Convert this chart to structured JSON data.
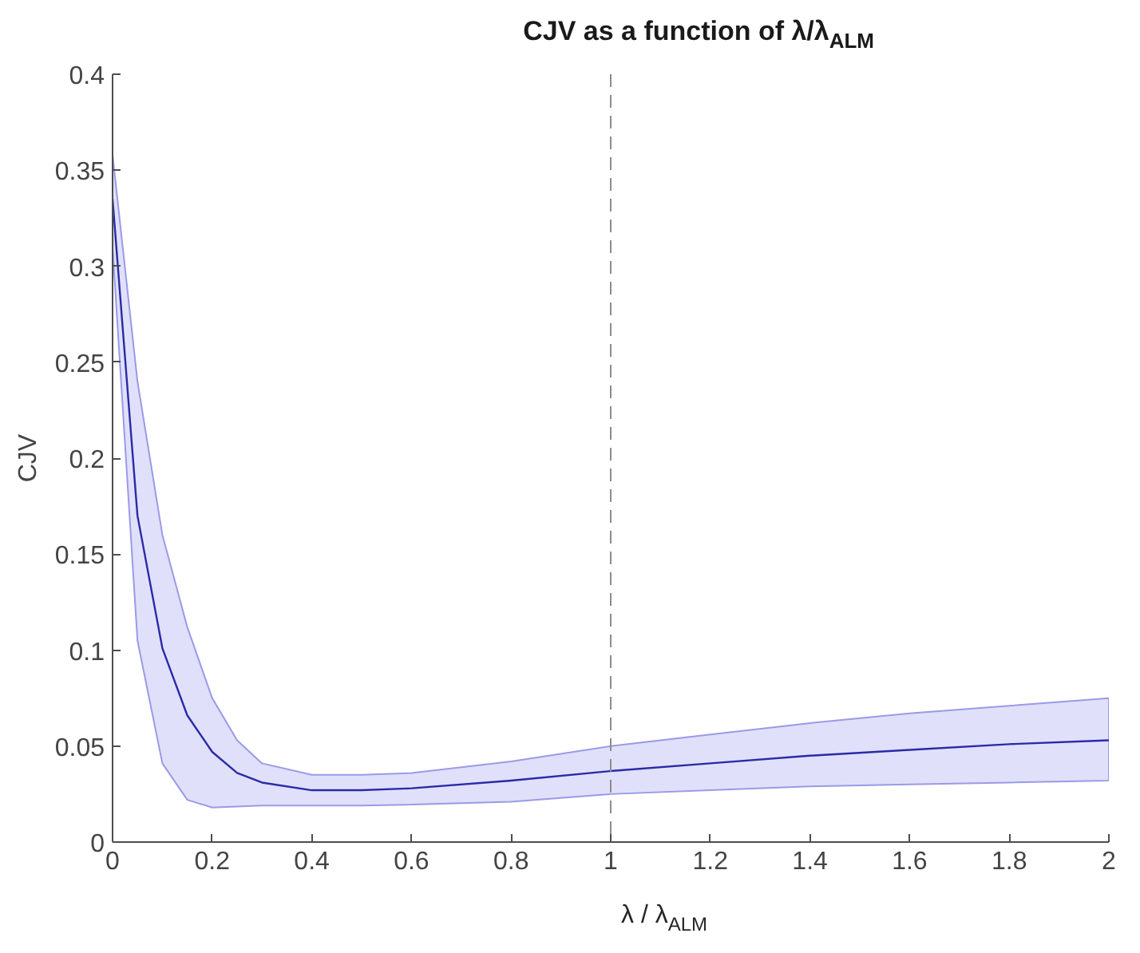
{
  "chart_data": {
    "type": "line",
    "title": "CJV as a function of λ/λ$_{ALM}$",
    "xlabel": "λ / λ$_{ALM}$",
    "ylabel": "CJV",
    "x": [
      0,
      0.05,
      0.1,
      0.15,
      0.2,
      0.25,
      0.3,
      0.4,
      0.5,
      0.6,
      0.8,
      1.0,
      1.2,
      1.4,
      1.6,
      1.8,
      2.0
    ],
    "series": [
      {
        "color": "#2a2aa8",
        "values": [
          0.335,
          0.17,
          0.101,
          0.066,
          0.047,
          0.036,
          0.031,
          0.027,
          0.027,
          0.028,
          0.032,
          0.037,
          0.041,
          0.045,
          0.048,
          0.051,
          0.053
        ],
        "lower": [
          0.31,
          0.105,
          0.041,
          0.022,
          0.018,
          0.0185,
          0.019,
          0.019,
          0.019,
          0.0195,
          0.021,
          0.025,
          0.027,
          0.029,
          0.03,
          0.031,
          0.032
        ],
        "upper": [
          0.358,
          0.24,
          0.16,
          0.112,
          0.075,
          0.053,
          0.041,
          0.035,
          0.035,
          0.036,
          0.042,
          0.05,
          0.056,
          0.062,
          0.067,
          0.071,
          0.075
        ]
      }
    ],
    "xlim": [
      0,
      2
    ],
    "ylim": [
      0,
      0.4
    ],
    "xticks": [
      0,
      0.2,
      0.4,
      0.6,
      0.8,
      1,
      1.2,
      1.4,
      1.6,
      1.8,
      2
    ],
    "yticks": [
      0,
      0.05,
      0.1,
      0.15,
      0.2,
      0.25,
      0.3,
      0.35,
      0.4
    ],
    "ref_lines": [
      {
        "axis": "x",
        "value": 1,
        "color": "#8c8c8c",
        "line_style": "dashed"
      }
    ],
    "grid": false,
    "marker": "none",
    "line_style": "solid"
  }
}
